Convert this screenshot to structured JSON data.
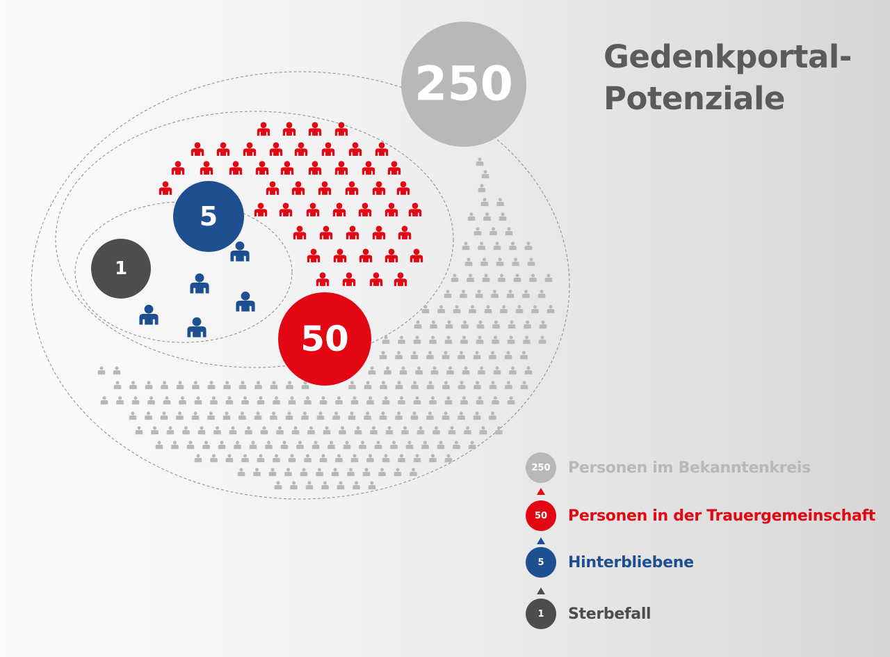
{
  "title": {
    "line1": "Gedenkportal-",
    "line2": "Potenziale"
  },
  "colors": {
    "gray_light": "#b8b8b8",
    "red": "#e30613",
    "blue": "#1d4f91",
    "gray_dark": "#4d4d4d"
  },
  "circles": [
    {
      "id": "bekanntenkreis",
      "value": "250",
      "color": "#b8b8b8"
    },
    {
      "id": "trauergemeinschaft",
      "value": "50",
      "color": "#e30613"
    },
    {
      "id": "hinterbliebene",
      "value": "5",
      "color": "#1d4f91"
    },
    {
      "id": "sterbefall",
      "value": "1",
      "color": "#4d4d4d"
    }
  ],
  "legend": [
    {
      "value": "250",
      "label": "Personen im Bekanntenkreis",
      "color": "#b8b8b8"
    },
    {
      "value": "50",
      "label": "Personen in der Trauergemeinschaft",
      "color": "#e30613"
    },
    {
      "value": "5",
      "label": "Hinterbliebene",
      "color": "#1d4f91"
    },
    {
      "value": "1",
      "label": "Sterbefall",
      "color": "#4d4d4d"
    }
  ],
  "icons": {
    "person": "person-icon"
  }
}
